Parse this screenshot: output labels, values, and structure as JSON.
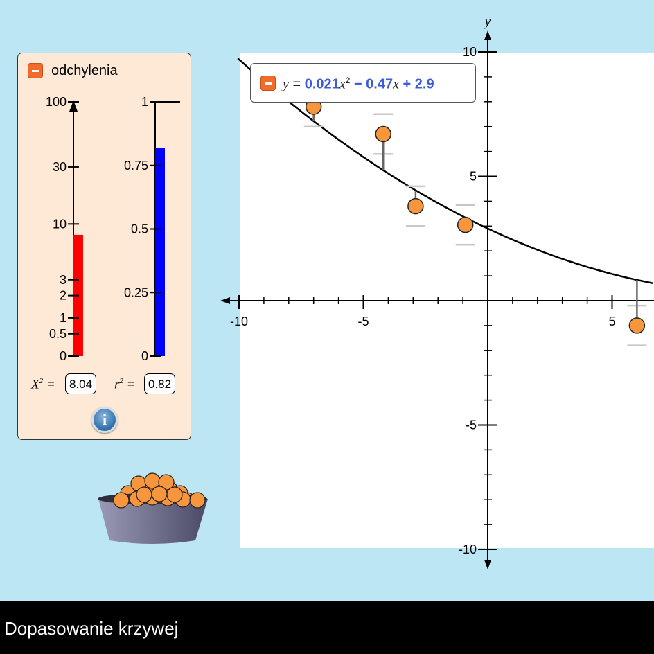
{
  "footer": {
    "title": "Dopasowanie krzywej"
  },
  "panel": {
    "title": "odchylenia",
    "chi_label": "X",
    "chi_value": "8.04",
    "r2_label": "r",
    "r2_value": "0.82",
    "info_glyph": "i",
    "colors": {
      "chi_bar": "#ff0000",
      "r2_bar": "#0000ff",
      "panel_bg": "#fde9d6"
    }
  },
  "equation": {
    "y": "y",
    "eq": "=",
    "a": "0.021",
    "x1": "x",
    "sup": "2",
    "minus": "−",
    "b": "0.47",
    "x2": "x",
    "plus": "+",
    "c": "2.9"
  },
  "chart_data": [
    {
      "type": "bar",
      "series": [
        {
          "values": [
            8.04
          ]
        }
      ],
      "y_scale": "logarithmic",
      "ylim": [
        0,
        100
      ],
      "tick_labels": [
        "100",
        "30",
        "10",
        "3",
        "2",
        "1",
        "0.5",
        "0"
      ],
      "color": "#ff0000"
    },
    {
      "type": "bar",
      "series": [
        {
          "values": [
            0.82
          ]
        }
      ],
      "ylim": [
        0,
        1
      ],
      "tick_labels": [
        "1",
        "0.75",
        "0.5",
        "0.25",
        "0"
      ],
      "color": "#0000ff"
    },
    {
      "type": "scatter",
      "ylabel": "y",
      "xlim": [
        -10,
        6.7
      ],
      "ylim": [
        -10,
        10
      ],
      "x_tick_labels": [
        "-10",
        "-5",
        "5"
      ],
      "y_tick_labels": [
        "10",
        "5",
        "-5",
        "-10"
      ],
      "points": [
        {
          "x": -7.0,
          "y": 7.8,
          "err_low": 7.0,
          "err_high": 8.6
        },
        {
          "x": -4.2,
          "y": 6.7,
          "err_low": 5.9,
          "err_high": 7.5
        },
        {
          "x": -2.9,
          "y": 3.8,
          "err_low": 3.0,
          "err_high": 4.6
        },
        {
          "x": -0.9,
          "y": 3.05,
          "err_low": 2.25,
          "err_high": 3.85
        },
        {
          "x": 6.0,
          "y": -1.0,
          "err_low": -1.8,
          "err_high": -0.2
        }
      ],
      "fit": {
        "a": 0.021,
        "b": -0.47,
        "c": 2.9
      },
      "colors": {
        "point": "#f7963c",
        "curve": "#000000",
        "error_bar": "#c8c8c8",
        "residual": "#666666"
      }
    }
  ],
  "bowl": {
    "color": "#4a4a66"
  }
}
